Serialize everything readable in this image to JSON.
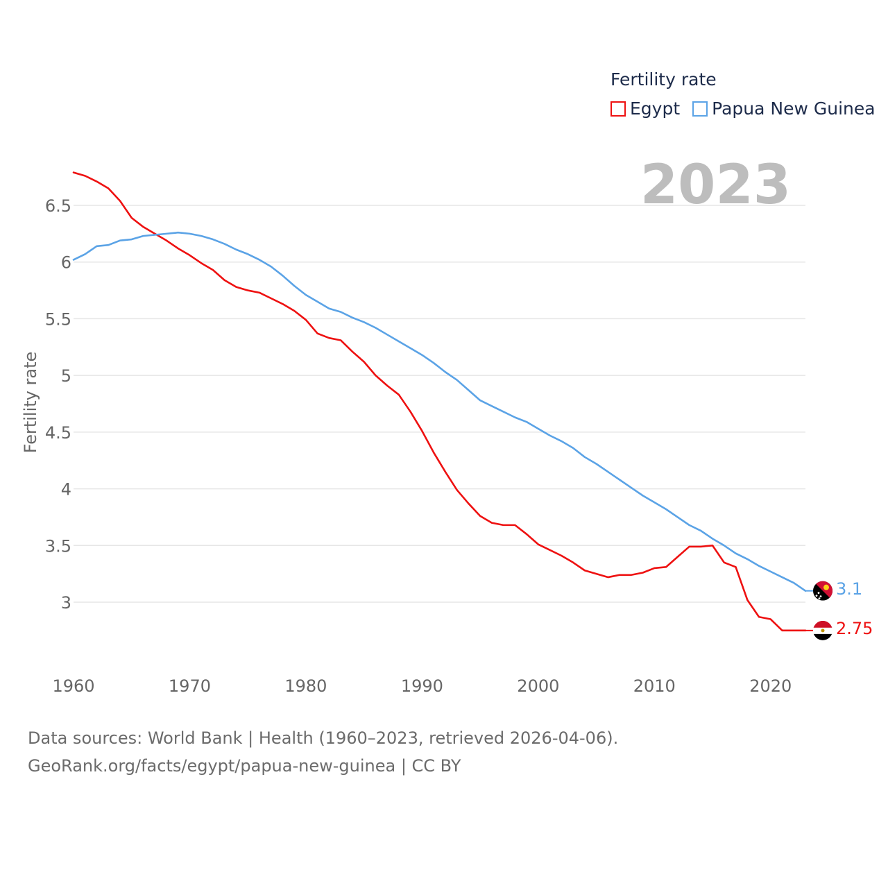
{
  "legend": {
    "title": "Fertility rate",
    "items": [
      {
        "label": "Egypt",
        "color": "#ee1111"
      },
      {
        "label": "Papua New Guinea",
        "color": "#5ba3e6"
      }
    ]
  },
  "year_label": "2023",
  "footer": {
    "line1": "Data sources: World Bank | Health (1960–2023, retrieved 2026-04-06).",
    "line2": "GeoRank.org/facts/egypt/papua-new-guinea | CC BY"
  },
  "end_labels": {
    "png": "3.1",
    "egypt": "2.75"
  },
  "flags": {
    "png": "papua-new-guinea-flag-icon",
    "egypt": "egypt-flag-icon"
  },
  "chart_data": {
    "type": "line",
    "title": "",
    "xlabel": "",
    "ylabel": "Fertility rate",
    "xlim": [
      1960,
      2023
    ],
    "ylim": [
      2.5,
      6.8
    ],
    "yticks": [
      3,
      3.5,
      4,
      4.5,
      5,
      5.5,
      6,
      6.5
    ],
    "ytick_labels": [
      "3",
      "3.5",
      "4",
      "4.5",
      "5",
      "5.5",
      "6",
      "6.5"
    ],
    "xticks": [
      1960,
      1970,
      1980,
      1990,
      2000,
      2010,
      2020
    ],
    "xtick_labels": [
      "1960",
      "1970",
      "1980",
      "1990",
      "2000",
      "2010",
      "2020"
    ],
    "x": [
      1960,
      1961,
      1962,
      1963,
      1964,
      1965,
      1966,
      1967,
      1968,
      1969,
      1970,
      1971,
      1972,
      1973,
      1974,
      1975,
      1976,
      1977,
      1978,
      1979,
      1980,
      1981,
      1982,
      1983,
      1984,
      1985,
      1986,
      1987,
      1988,
      1989,
      1990,
      1991,
      1992,
      1993,
      1994,
      1995,
      1996,
      1997,
      1998,
      1999,
      2000,
      2001,
      2002,
      2003,
      2004,
      2005,
      2006,
      2007,
      2008,
      2009,
      2010,
      2011,
      2012,
      2013,
      2014,
      2015,
      2016,
      2017,
      2018,
      2019,
      2020,
      2021,
      2022,
      2023
    ],
    "series": [
      {
        "name": "Egypt",
        "color": "#ee1111",
        "values": [
          6.79,
          6.76,
          6.71,
          6.65,
          6.54,
          6.39,
          6.31,
          6.25,
          6.19,
          6.12,
          6.06,
          5.99,
          5.93,
          5.84,
          5.78,
          5.75,
          5.73,
          5.68,
          5.63,
          5.57,
          5.49,
          5.37,
          5.33,
          5.31,
          5.21,
          5.12,
          5.0,
          4.91,
          4.83,
          4.68,
          4.51,
          4.32,
          4.15,
          3.99,
          3.87,
          3.76,
          3.7,
          3.68,
          3.68,
          3.6,
          3.51,
          3.46,
          3.41,
          3.35,
          3.28,
          3.25,
          3.22,
          3.24,
          3.24,
          3.26,
          3.3,
          3.31,
          3.4,
          3.49,
          3.49,
          3.5,
          3.35,
          3.31,
          3.02,
          2.87,
          2.85,
          2.75,
          2.75,
          2.75
        ]
      },
      {
        "name": "Papua New Guinea",
        "color": "#5ba3e6",
        "values": [
          6.02,
          6.07,
          6.14,
          6.15,
          6.19,
          6.2,
          6.23,
          6.24,
          6.25,
          6.26,
          6.25,
          6.23,
          6.2,
          6.16,
          6.11,
          6.07,
          6.02,
          5.96,
          5.88,
          5.79,
          5.71,
          5.65,
          5.59,
          5.56,
          5.51,
          5.47,
          5.42,
          5.36,
          5.3,
          5.24,
          5.18,
          5.11,
          5.03,
          4.96,
          4.87,
          4.78,
          4.73,
          4.68,
          4.63,
          4.59,
          4.53,
          4.47,
          4.42,
          4.36,
          4.28,
          4.22,
          4.15,
          4.08,
          4.01,
          3.94,
          3.88,
          3.82,
          3.75,
          3.68,
          3.63,
          3.56,
          3.5,
          3.43,
          3.38,
          3.32,
          3.27,
          3.22,
          3.17,
          3.1
        ]
      }
    ]
  }
}
